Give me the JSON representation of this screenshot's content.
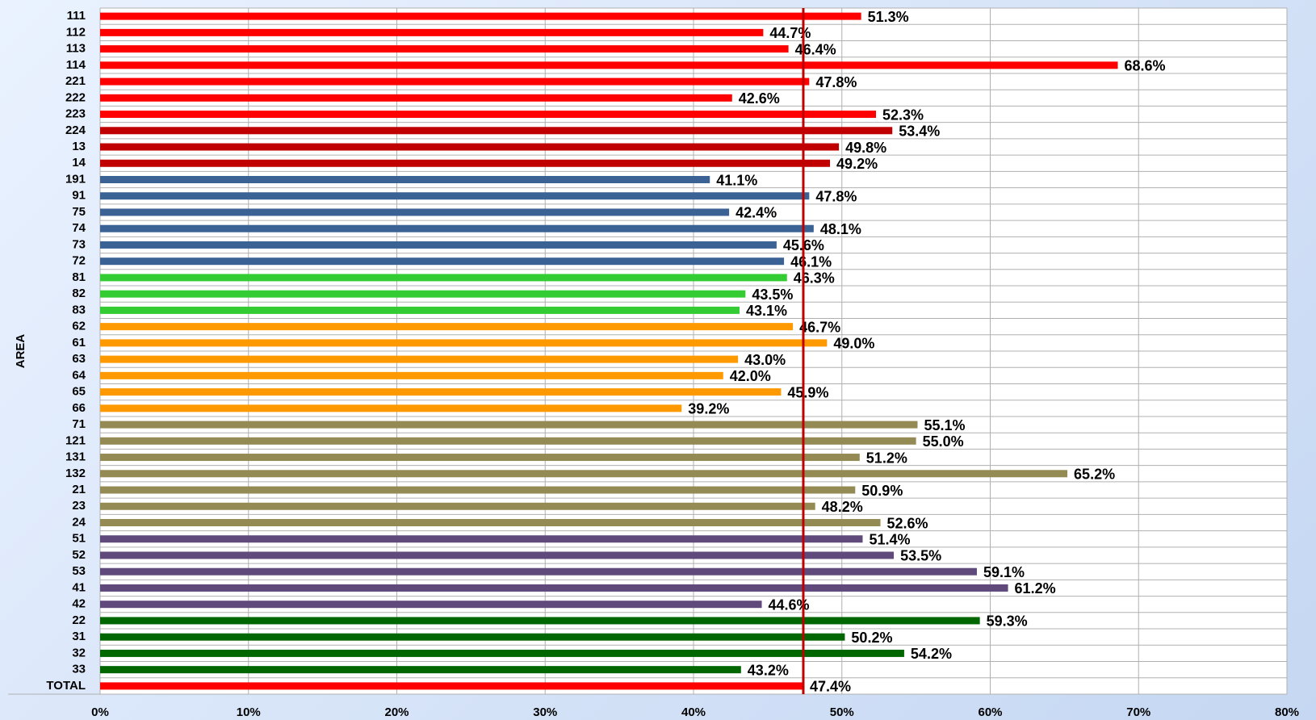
{
  "chart_data": {
    "type": "bar",
    "orientation": "horizontal",
    "y_label": "AREA",
    "categories": [
      "111",
      "112",
      "113",
      "114",
      "221",
      "222",
      "223",
      "224",
      "13",
      "14",
      "191",
      "91",
      "75",
      "74",
      "73",
      "72",
      "81",
      "82",
      "83",
      "62",
      "61",
      "63",
      "64",
      "65",
      "66",
      "71",
      "121",
      "131",
      "132",
      "21",
      "23",
      "24",
      "51",
      "52",
      "53",
      "41",
      "42",
      "22",
      "31",
      "32",
      "33",
      "TOTAL"
    ],
    "values": [
      51.3,
      44.7,
      46.4,
      68.6,
      47.8,
      42.6,
      52.3,
      53.4,
      49.8,
      49.2,
      41.1,
      47.8,
      42.4,
      48.1,
      45.6,
      46.1,
      46.3,
      43.5,
      43.1,
      46.7,
      49.0,
      43.0,
      42.0,
      45.9,
      39.2,
      55.1,
      55.0,
      51.2,
      65.2,
      50.9,
      48.2,
      52.6,
      51.4,
      53.5,
      59.1,
      61.2,
      44.6,
      59.3,
      50.2,
      54.2,
      43.2,
      47.4
    ],
    "value_labels": [
      "51.3%",
      "44.7%",
      "46.4%",
      "68.6%",
      "47.8%",
      "42.6%",
      "52.3%",
      "53.4%",
      "49.8%",
      "49.2%",
      "41.1%",
      "47.8%",
      "42.4%",
      "48.1%",
      "45.6%",
      "46.1%",
      "46.3%",
      "43.5%",
      "43.1%",
      "46.7%",
      "49.0%",
      "43.0%",
      "42.0%",
      "45.9%",
      "39.2%",
      "55.1%",
      "55.0%",
      "51.2%",
      "65.2%",
      "50.9%",
      "48.2%",
      "52.6%",
      "51.4%",
      "53.5%",
      "59.1%",
      "61.2%",
      "44.6%",
      "59.3%",
      "50.2%",
      "54.2%",
      "43.2%",
      "47.4%"
    ],
    "colors": [
      "#ff0000",
      "#ff0000",
      "#ff0000",
      "#ff0000",
      "#ff0000",
      "#ff0000",
      "#ff0000",
      "#c00000",
      "#c00000",
      "#c00000",
      "#3b6295",
      "#3b6295",
      "#3b6295",
      "#3b6295",
      "#3b6295",
      "#3b6295",
      "#33cc33",
      "#33cc33",
      "#33cc33",
      "#ff9900",
      "#ff9900",
      "#ff9900",
      "#ff9900",
      "#ff9900",
      "#ff9900",
      "#948a54",
      "#948a54",
      "#948a54",
      "#948a54",
      "#948a54",
      "#948a54",
      "#948a54",
      "#604a7b",
      "#604a7b",
      "#604a7b",
      "#604a7b",
      "#604a7b",
      "#006600",
      "#006600",
      "#006600",
      "#006600",
      "#ff0000"
    ],
    "xlim": [
      0,
      80
    ],
    "xticks": [
      {
        "value": 0,
        "label": "0%"
      },
      {
        "value": 10,
        "label": "10%"
      },
      {
        "value": 20,
        "label": "20%"
      },
      {
        "value": 30,
        "label": "30%"
      },
      {
        "value": 40,
        "label": "40%"
      },
      {
        "value": 50,
        "label": "50%"
      },
      {
        "value": 60,
        "label": "60%"
      },
      {
        "value": 70,
        "label": "70%"
      },
      {
        "value": 80,
        "label": "80%"
      }
    ],
    "grid": true,
    "reference_line": {
      "value": 47.4,
      "color": "#c00000"
    }
  }
}
